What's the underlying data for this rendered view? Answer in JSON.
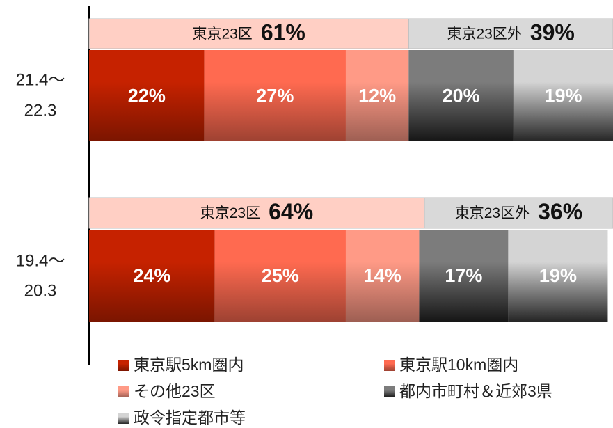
{
  "chart_data": {
    "type": "stacked_bar_horizontal",
    "categories": [
      [
        "21.4～",
        "22.3"
      ],
      [
        "19.4～",
        "20.3"
      ]
    ],
    "xlim": [
      0,
      100
    ],
    "series": [
      {
        "name": "東京駅5km圏内",
        "color": "#c62200",
        "values": [
          22,
          24
        ],
        "value_labels": [
          "22%",
          "24%"
        ]
      },
      {
        "name": "東京駅10km圏内",
        "color": "#ff6a50",
        "values": [
          27,
          25
        ],
        "value_labels": [
          "27%",
          "25%"
        ]
      },
      {
        "name": "その他23区",
        "color": "#ff9a86",
        "values": [
          12,
          14
        ],
        "value_labels": [
          "12%",
          "14%"
        ]
      },
      {
        "name": "都内市町村＆近郊3県",
        "color": "#7c7c7c",
        "values": [
          20,
          17
        ],
        "value_labels": [
          "20%",
          "17%"
        ]
      },
      {
        "name": "政令指定都市等",
        "color": "#d4d4d4",
        "values": [
          19,
          19
        ],
        "value_labels": [
          "19%",
          "19%"
        ]
      }
    ],
    "groups": [
      {
        "name": "東京23区",
        "color": "#ffcfc4",
        "values": [
          61,
          64
        ],
        "value_labels": [
          "61%",
          "64%"
        ]
      },
      {
        "name": "東京23区外",
        "color": "#d9d9d9",
        "values": [
          39,
          36
        ],
        "value_labels": [
          "39%",
          "36%"
        ]
      }
    ],
    "legend": "bottom"
  }
}
